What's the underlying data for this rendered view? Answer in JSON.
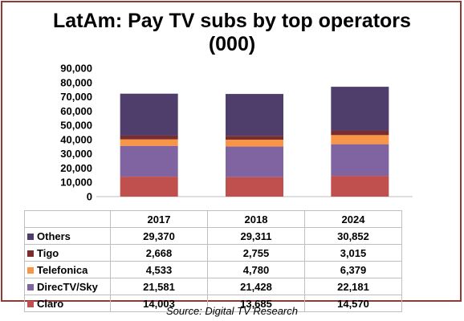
{
  "chart_data": {
    "type": "bar",
    "stacked": true,
    "title": "LatAm: Pay TV subs by top operators",
    "subtitle": "(000)",
    "categories": [
      "2017",
      "2018",
      "2024"
    ],
    "series": [
      {
        "name": "Claro",
        "color": "#c0504d",
        "values": [
          14003,
          13685,
          14570
        ]
      },
      {
        "name": "DirecTV/Sky",
        "color": "#8064a2",
        "values": [
          21581,
          21428,
          22181
        ]
      },
      {
        "name": "Telefonica",
        "color": "#f79646",
        "values": [
          4533,
          4780,
          6379
        ]
      },
      {
        "name": "Tigo",
        "color": "#7b2c2c",
        "values": [
          2668,
          2755,
          3015
        ]
      },
      {
        "name": "Others",
        "color": "#4f3d6b",
        "values": [
          29370,
          29311,
          30852
        ]
      }
    ],
    "table_rows": [
      {
        "name": "Others",
        "color": "#4f3d6b",
        "values": [
          "29,370",
          "29,311",
          "30,852"
        ]
      },
      {
        "name": "Tigo",
        "color": "#7b2c2c",
        "values": [
          "2,668",
          "2,755",
          "3,015"
        ]
      },
      {
        "name": "Telefonica",
        "color": "#f79646",
        "values": [
          "4,533",
          "4,780",
          "6,379"
        ]
      },
      {
        "name": "DirecTV/Sky",
        "color": "#8064a2",
        "values": [
          "21,581",
          "21,428",
          "22,181"
        ]
      },
      {
        "name": "Claro",
        "color": "#c0504d",
        "values": [
          "14,003",
          "13,685",
          "14,570"
        ]
      }
    ],
    "ylim": [
      0,
      90000
    ],
    "yticks": [
      "0",
      "10,000",
      "20,000",
      "30,000",
      "40,000",
      "50,000",
      "60,000",
      "70,000",
      "80,000",
      "90,000"
    ],
    "grid": false,
    "legend": "data-table",
    "source": "Source: Digital TV Research"
  },
  "colors": {
    "frame": "#8e3a35",
    "grid_line": "#bfbfbf"
  }
}
